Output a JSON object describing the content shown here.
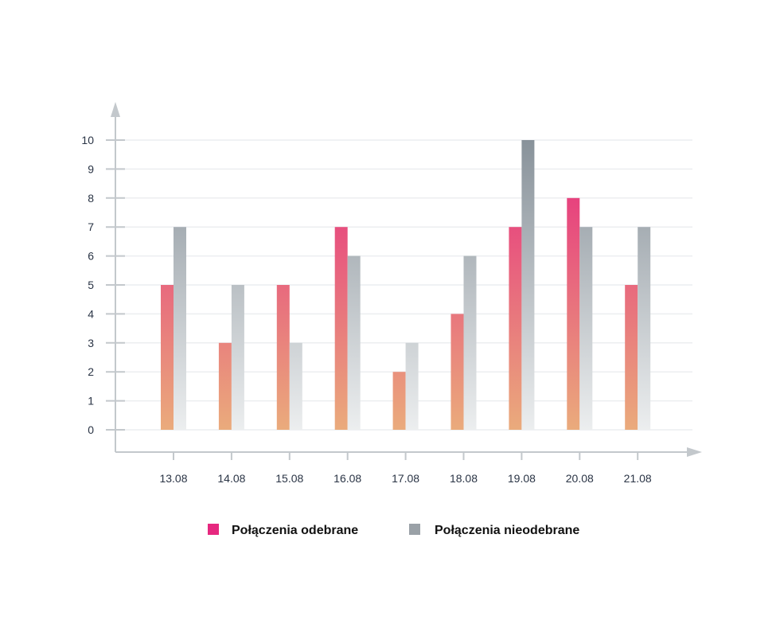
{
  "chart_data": {
    "type": "bar",
    "title": "",
    "xlabel": "",
    "ylabel": "",
    "ylim": [
      0,
      10
    ],
    "yticks": [
      "0",
      "1",
      "2",
      "3",
      "4",
      "5",
      "6",
      "7",
      "8",
      "9",
      "10"
    ],
    "grid": true,
    "legend_position": "bottom",
    "categories": [
      "13.08",
      "14.08",
      "15.08",
      "16.08",
      "17.08",
      "18.08",
      "19.08",
      "20.08",
      "21.08"
    ],
    "series": [
      {
        "name": "Połączenia odebrane",
        "values": [
          5,
          3,
          5,
          7,
          2,
          4,
          7,
          8,
          5
        ],
        "color_top": "#e6287f",
        "color_bottom": "#eaab7c"
      },
      {
        "name": "Połączenia nieodebrane",
        "values": [
          7,
          5,
          3,
          6,
          3,
          6,
          10,
          7,
          7
        ],
        "color_top": "#88929a",
        "color_bottom": "#eceeef"
      }
    ]
  }
}
